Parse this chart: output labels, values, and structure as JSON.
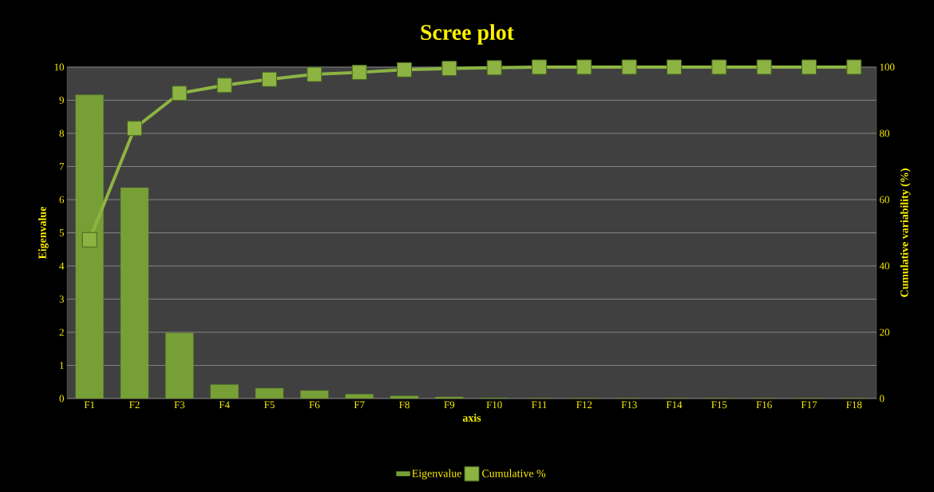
{
  "chart_data": {
    "type": "bar",
    "title": "Scree plot",
    "xlabel": "axis",
    "ylabel": "Eigenvalue",
    "y2label": "Cumulative variability (%)",
    "categories": [
      "F1",
      "F2",
      "F3",
      "F4",
      "F5",
      "F6",
      "F7",
      "F8",
      "F9",
      "F10",
      "F11",
      "F12",
      "F13",
      "F14",
      "F15",
      "F16",
      "F17",
      "F18"
    ],
    "series": [
      {
        "name": "Eigenvalue",
        "color": "#76a035",
        "values": [
          9.16,
          6.36,
          1.98,
          0.42,
          0.31,
          0.24,
          0.13,
          0.08,
          0.05,
          0.02,
          0.01,
          0.01,
          0.01,
          0.01,
          0.01,
          0.01,
          0.01,
          0.01
        ]
      },
      {
        "name": "Cumulative %",
        "color": "#8db443",
        "type": "line",
        "axis": "y2",
        "marker": "square",
        "values": [
          47.9,
          81.5,
          92.1,
          94.5,
          96.3,
          97.8,
          98.4,
          99.2,
          99.6,
          99.8,
          100,
          100,
          100,
          100,
          100,
          100,
          100,
          100
        ]
      }
    ],
    "ylim": [
      0,
      10
    ],
    "yticks": [
      0,
      1,
      2,
      3,
      4,
      5,
      6,
      7,
      8,
      9,
      10
    ],
    "y2lim": [
      0,
      100
    ],
    "y2ticks": [
      0,
      20,
      40,
      60,
      80,
      100
    ],
    "grid": "y",
    "legend": "bottom"
  }
}
